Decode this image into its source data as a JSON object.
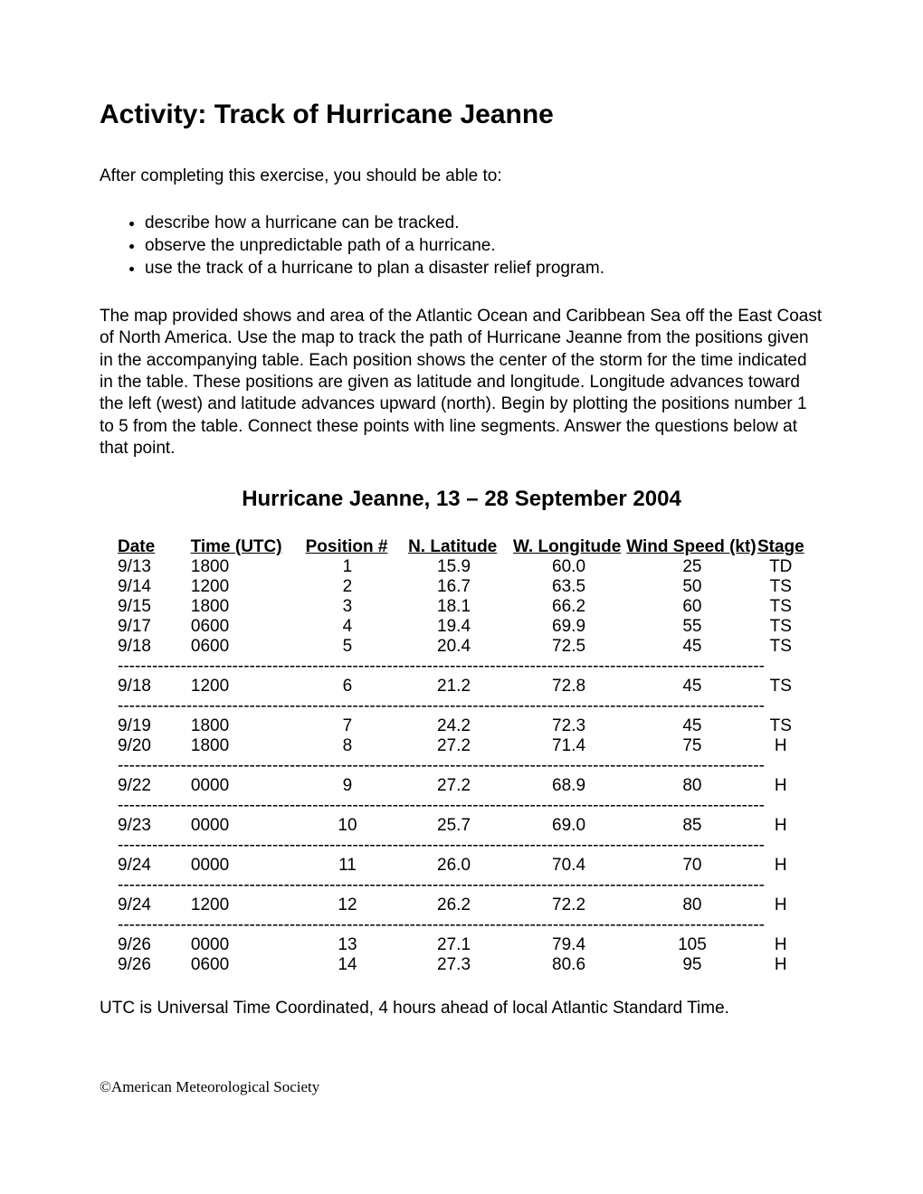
{
  "title": "Activity:  Track of Hurricane Jeanne",
  "intro": "After completing this exercise, you should be able to:",
  "objectives": [
    "describe how a hurricane can be tracked.",
    "observe the unpredictable path of a hurricane.",
    "use the track of a hurricane to plan a disaster relief program."
  ],
  "paragraph": "The map provided shows and area of the Atlantic Ocean and Caribbean Sea off the East Coast of North America.  Use the map to track the path of Hurricane Jeanne from the positions given in the accompanying table.  Each position shows the center of the storm for the time indicated in the table.  These positions are given as latitude and longitude.  Longitude advances toward the left (west) and latitude advances upward (north).  Begin by plotting the positions number 1 to 5 from the table.  Connect these points with line segments.  Answer the questions below at that point.",
  "table_title": "Hurricane Jeanne, 13 – 28 September 2004",
  "columns": [
    "Date",
    "Time (UTC)",
    "Position #",
    "N. Latitude",
    "W. Longitude",
    "Wind Speed (kt)",
    "Stage"
  ],
  "groups": [
    {
      "rows": [
        {
          "date": "9/13",
          "time": "1800",
          "pos": "1",
          "lat": "15.9",
          "lon": "60.0",
          "wind": "25",
          "stage": "TD"
        },
        {
          "date": "9/14",
          "time": "1200",
          "pos": "2",
          "lat": "16.7",
          "lon": "63.5",
          "wind": "50",
          "stage": "TS"
        },
        {
          "date": "9/15",
          "time": "1800",
          "pos": "3",
          "lat": "18.1",
          "lon": "66.2",
          "wind": "60",
          "stage": "TS"
        },
        {
          "date": "9/17",
          "time": "0600",
          "pos": "4",
          "lat": "19.4",
          "lon": "69.9",
          "wind": "55",
          "stage": "TS"
        },
        {
          "date": "9/18",
          "time": "0600",
          "pos": "5",
          "lat": "20.4",
          "lon": "72.5",
          "wind": "45",
          "stage": "TS"
        }
      ]
    },
    {
      "rows": [
        {
          "date": "9/18",
          "time": "1200",
          "pos": "6",
          "lat": "21.2",
          "lon": "72.8",
          "wind": "45",
          "stage": "TS"
        }
      ]
    },
    {
      "rows": [
        {
          "date": "9/19",
          "time": "1800",
          "pos": "7",
          "lat": "24.2",
          "lon": "72.3",
          "wind": "45",
          "stage": "TS"
        },
        {
          "date": "9/20",
          "time": "1800",
          "pos": "8",
          "lat": "27.2",
          "lon": "71.4",
          "wind": "75",
          "stage": "H"
        }
      ]
    },
    {
      "rows": [
        {
          "date": "9/22",
          "time": "0000",
          "pos": "9",
          "lat": "27.2",
          "lon": "68.9",
          "wind": "80",
          "stage": "H"
        }
      ]
    },
    {
      "rows": [
        {
          "date": "9/23",
          "time": "0000",
          "pos": "10",
          "lat": "25.7",
          "lon": "69.0",
          "wind": "85",
          "stage": "H"
        }
      ]
    },
    {
      "rows": [
        {
          "date": "9/24",
          "time": "0000",
          "pos": "11",
          "lat": "26.0",
          "lon": "70.4",
          "wind": "70",
          "stage": "H"
        }
      ]
    },
    {
      "rows": [
        {
          "date": "9/24",
          "time": "1200",
          "pos": "12",
          "lat": "26.2",
          "lon": "72.2",
          "wind": "80",
          "stage": "H"
        }
      ]
    },
    {
      "rows": [
        {
          "date": "9/26",
          "time": "0000",
          "pos": "13",
          "lat": "27.1",
          "lon": "79.4",
          "wind": "105",
          "stage": "H"
        },
        {
          "date": "9/26",
          "time": "0600",
          "pos": "14",
          "lat": "27.3",
          "lon": "80.6",
          "wind": "95",
          "stage": "H"
        }
      ]
    }
  ],
  "divider_text": "-----------------------------------------------------------------------------------------------------------------",
  "footnote": "UTC is Universal Time Coordinated, 4 hours ahead of local Atlantic Standard Time.",
  "copyright": "©American Meteorological Society"
}
